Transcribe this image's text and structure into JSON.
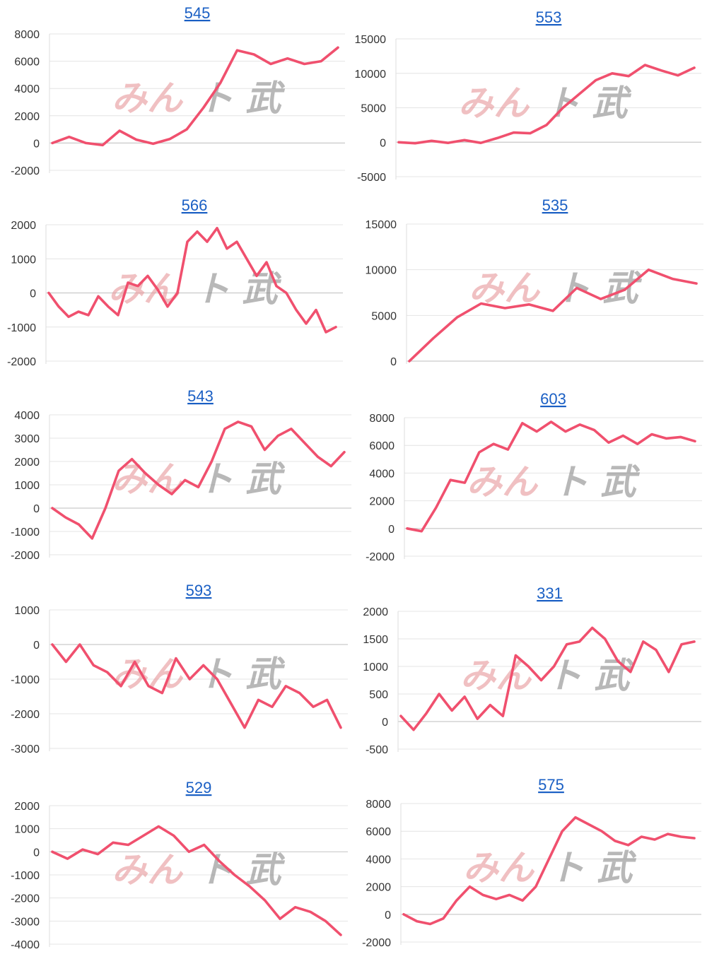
{
  "watermark": {
    "part1": "みん",
    "part2": "ト 武"
  },
  "colors": {
    "series": "#f0506e",
    "title_link": "#1a5fc4",
    "watermark_pink": "#e79a9d",
    "watermark_gray": "#8d8d8d"
  },
  "chart_data": [
    {
      "type": "line",
      "title": "545",
      "yticks": [
        8000,
        6000,
        4000,
        2000,
        0,
        -2000
      ],
      "ylim": [
        -2000,
        8000
      ],
      "grid": true,
      "series": [
        {
          "values": [
            0,
            450,
            0,
            -150,
            900,
            250,
            -50,
            300,
            1000,
            2600,
            4400,
            6800,
            6500,
            5800,
            6200,
            5800,
            6000,
            7000
          ]
        }
      ]
    },
    {
      "type": "line",
      "title": "553",
      "yticks": [
        15000,
        10000,
        5000,
        0,
        -5000
      ],
      "ylim": [
        -5000,
        15000
      ],
      "grid": true,
      "series": [
        {
          "values": [
            0,
            -150,
            200,
            -100,
            300,
            -100,
            600,
            1400,
            1300,
            2500,
            5000,
            7000,
            9000,
            10000,
            9600,
            11200,
            10400,
            9700,
            10800
          ]
        }
      ]
    },
    {
      "type": "line",
      "title": "566",
      "yticks": [
        2000,
        1000,
        0,
        -1000,
        -2000
      ],
      "ylim": [
        -2000,
        2000
      ],
      "grid": true,
      "series": [
        {
          "values": [
            0,
            -400,
            -700,
            -550,
            -650,
            -100,
            -400,
            -650,
            300,
            200,
            500,
            100,
            -400,
            0,
            1500,
            1800,
            1500,
            1900,
            1300,
            1500,
            1000,
            500,
            900,
            200,
            0,
            -500,
            -900,
            -500,
            -1150,
            -1000
          ]
        }
      ]
    },
    {
      "type": "line",
      "title": "535",
      "yticks": [
        15000,
        10000,
        5000,
        0
      ],
      "ylim": [
        0,
        15000
      ],
      "grid": true,
      "series": [
        {
          "values": [
            0,
            2500,
            4800,
            6300,
            5800,
            6200,
            5500,
            8000,
            6800,
            7800,
            10000,
            9000,
            8500
          ]
        }
      ]
    },
    {
      "type": "line",
      "title": "543",
      "yticks": [
        4000,
        3000,
        2000,
        1000,
        0,
        -1000,
        -2000
      ],
      "ylim": [
        -2000,
        4000
      ],
      "grid": true,
      "series": [
        {
          "values": [
            0,
            -400,
            -700,
            -1300,
            0,
            1600,
            2100,
            1500,
            1000,
            600,
            1200,
            900,
            2000,
            3400,
            3700,
            3500,
            2500,
            3100,
            3400,
            2800,
            2200,
            1800,
            2400
          ]
        }
      ]
    },
    {
      "type": "line",
      "title": "603",
      "yticks": [
        8000,
        6000,
        4000,
        2000,
        0,
        -2000
      ],
      "ylim": [
        -2000,
        8000
      ],
      "grid": true,
      "series": [
        {
          "values": [
            0,
            -200,
            1500,
            3500,
            3300,
            5500,
            6100,
            5700,
            7600,
            7000,
            7700,
            7000,
            7500,
            7100,
            6200,
            6700,
            6100,
            6800,
            6500,
            6600,
            6300
          ]
        }
      ]
    },
    {
      "type": "line",
      "title": "593",
      "yticks": [
        1000,
        0,
        -1000,
        -2000,
        -3000
      ],
      "ylim": [
        -3000,
        1000
      ],
      "grid": true,
      "series": [
        {
          "values": [
            0,
            -500,
            0,
            -600,
            -800,
            -1200,
            -500,
            -1200,
            -1400,
            -400,
            -1000,
            -600,
            -1000,
            -1700,
            -2400,
            -1600,
            -1800,
            -1200,
            -1400,
            -1800,
            -1600,
            -2400
          ]
        }
      ]
    },
    {
      "type": "line",
      "title": "331",
      "yticks": [
        2000,
        1500,
        1000,
        500,
        0,
        -500
      ],
      "ylim": [
        -500,
        2000
      ],
      "grid": true,
      "series": [
        {
          "values": [
            100,
            -150,
            150,
            500,
            200,
            450,
            50,
            300,
            100,
            1200,
            1000,
            750,
            1000,
            1400,
            1450,
            1700,
            1500,
            1100,
            900,
            1450,
            1300,
            900,
            1400,
            1450
          ]
        }
      ]
    },
    {
      "type": "line",
      "title": "529",
      "yticks": [
        2000,
        1000,
        0,
        -1000,
        -2000,
        -3000,
        -4000
      ],
      "ylim": [
        -4000,
        2000
      ],
      "grid": true,
      "series": [
        {
          "values": [
            0,
            -300,
            100,
            -100,
            400,
            300,
            700,
            1100,
            700,
            0,
            300,
            -400,
            -1000,
            -1500,
            -2100,
            -2900,
            -2400,
            -2600,
            -3000,
            -3600
          ]
        }
      ]
    },
    {
      "type": "line",
      "title": "575",
      "yticks": [
        8000,
        6000,
        4000,
        2000,
        0,
        -2000
      ],
      "ylim": [
        -2000,
        8000
      ],
      "grid": true,
      "series": [
        {
          "values": [
            0,
            -500,
            -700,
            -300,
            1000,
            2000,
            1400,
            1100,
            1400,
            1000,
            2000,
            4000,
            6000,
            7000,
            6500,
            6000,
            5300,
            5000,
            5600,
            5400,
            5800,
            5600,
            5500
          ]
        }
      ]
    }
  ]
}
